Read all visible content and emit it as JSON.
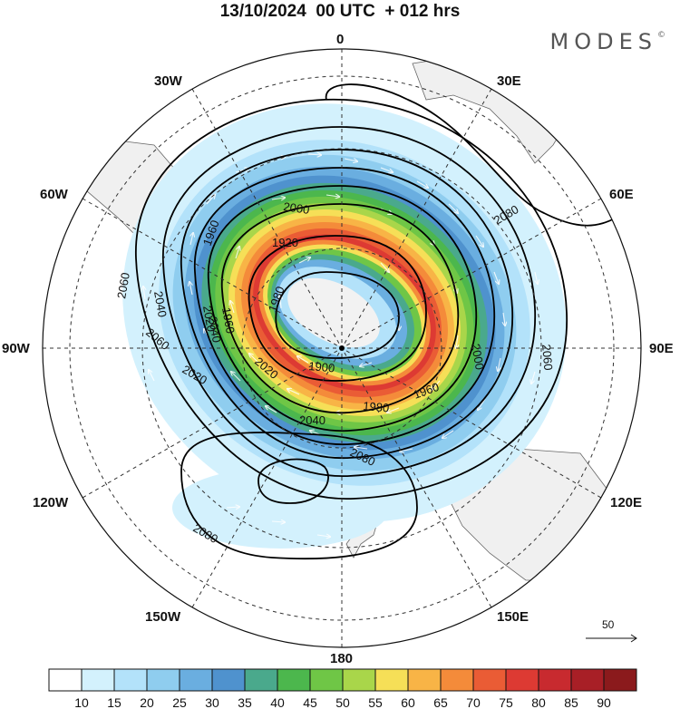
{
  "header": {
    "title": "13/10/2024  00 UTC  + 012 hrs",
    "brand": "MODES",
    "brand_mark": "©"
  },
  "map": {
    "projection": "south-polar-stereographic",
    "longitude_labels": [
      "0",
      "30E",
      "60E",
      "90E",
      "120E",
      "150E",
      "180",
      "150W",
      "120W",
      "90W",
      "60W",
      "30W"
    ],
    "contour_labels": [
      "2000",
      "1960",
      "1920",
      "1980",
      "2020",
      "2040",
      "2060",
      "2080",
      "1960",
      "2020",
      "2000",
      "2040",
      "2060",
      "1980",
      "1960",
      "1900",
      "2020",
      "2040",
      "2060",
      "2080",
      "2080"
    ],
    "reference_vector": {
      "value": "50",
      "icon": "arrow-right-icon"
    },
    "land_color": "#f2f2f2",
    "contour_color": "#000000",
    "colorbar": {
      "ticks": [
        "10",
        "15",
        "20",
        "25",
        "30",
        "35",
        "40",
        "45",
        "50",
        "55",
        "60",
        "65",
        "70",
        "75",
        "80",
        "85",
        "90"
      ],
      "colors": [
        "#ffffff",
        "#d3f1fd",
        "#b3e2fa",
        "#8fcdef",
        "#6aaee0",
        "#4f92ce",
        "#4aa98c",
        "#4cb74d",
        "#6fc646",
        "#a9d64a",
        "#f6df57",
        "#f8b446",
        "#f48b3a",
        "#ea5c35",
        "#dd3a33",
        "#c82a2f",
        "#a81f26",
        "#8b1a1c"
      ]
    }
  }
}
